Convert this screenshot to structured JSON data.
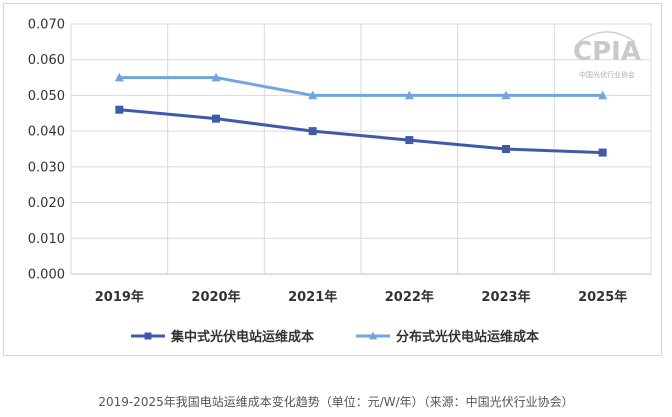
{
  "chart_data": {
    "type": "line",
    "title": "",
    "xlabel": "",
    "ylabel": "",
    "categories": [
      "2019年",
      "2020年",
      "2021年",
      "2022年",
      "2023年",
      "2025年"
    ],
    "ylim": [
      0,
      0.07
    ],
    "yticks": [
      "0.000",
      "0.010",
      "0.020",
      "0.030",
      "0.040",
      "0.050",
      "0.060",
      "0.070"
    ],
    "grid": true,
    "legend_position": "bottom",
    "series": [
      {
        "name": "集中式光伏电站运维成本",
        "values": [
          0.046,
          0.0435,
          0.04,
          0.0375,
          0.035,
          0.034
        ],
        "color": "#3f5aa8",
        "marker": "square"
      },
      {
        "name": "分布式光伏电站运维成本",
        "values": [
          0.055,
          0.055,
          0.05,
          0.05,
          0.05,
          0.05
        ],
        "color": "#6fa6dc",
        "marker": "triangle"
      }
    ]
  },
  "logo": {
    "name": "CPIA",
    "subtitle": "中国光伏行业协会",
    "color": "#c9c9c9"
  },
  "caption": "2019-2025年我国电站运维成本变化趋势（单位：元/W/年）（来源：中国光伏行业协会）"
}
